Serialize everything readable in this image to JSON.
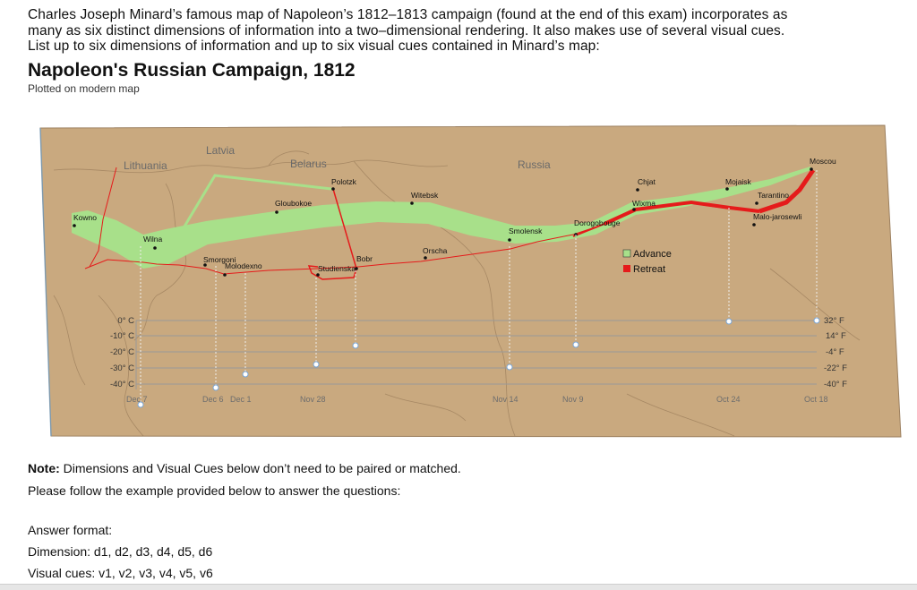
{
  "question": {
    "line1": "Charles Joseph Minard’s famous map of Napoleon’s 1812–1813 campaign (found at the end of this exam) incorporates as",
    "line2": "many as six distinct dimensions of information into a two–dimensional rendering. It also makes use of several visual cues.",
    "line3": "List up to six dimensions of information and up to six visual cues contained in Minard’s map:"
  },
  "map": {
    "title": "Napoleon's Russian Campaign, 1812",
    "subtitle": "Plotted on modern map",
    "regions": {
      "lithuania": "Lithuania",
      "latvia": "Latvia",
      "belarus": "Belarus",
      "russia": "Russia"
    },
    "cities": {
      "kowno": "Kowno",
      "wilna": "Wilna",
      "smorgoni": "Smorgoni",
      "molodexno": "Molodexno",
      "gloubokoe": "Gloubokoe",
      "polotzk": "Polotzk",
      "studienska": "Studienska",
      "bobr": "Bobr",
      "witebsk": "Witebsk",
      "orscha": "Orscha",
      "smolensk": "Smolensk",
      "dorogobouge": "Dorogobouge",
      "chjat": "Chjat",
      "wixma": "Wixma",
      "mojaisk": "Mojaisk",
      "tarantino": "Tarantino",
      "malo_jarosewli": "Malo-jarosewli",
      "moscou": "Moscou"
    },
    "legend": {
      "advance": "Advance",
      "retreat": "Retreat",
      "advance_color": "#a8e08a",
      "retreat_color": "#e51b1b"
    },
    "temperature": {
      "left_labels": [
        "0° C",
        "-10° C",
        "-20° C",
        "-30° C",
        "-40° C"
      ],
      "right_labels": [
        "32° F",
        "14° F",
        "-4° F",
        "-22° F",
        "-40° F"
      ],
      "dates": {
        "dec7": "Dec 7",
        "dec6": "Dec 6",
        "dec1": "Dec 1",
        "nov28": "Nov 28",
        "nov14": "Nov 14",
        "nov9": "Nov 9",
        "oct24": "Oct 24",
        "oct18": "Oct 18"
      }
    },
    "background_color": "#c9a97f"
  },
  "note": {
    "label": "Note:",
    "text": " Dimensions and Visual Cues below don’t need to be paired or matched.",
    "line2": "Please follow the example provided below to answer the questions:"
  },
  "answer": {
    "format": "Answer format:",
    "dimension": "Dimension: d1, d2, d3, d4, d5, d6",
    "visual": "Visual cues: v1, v2, v3, v4, v5, v6"
  }
}
